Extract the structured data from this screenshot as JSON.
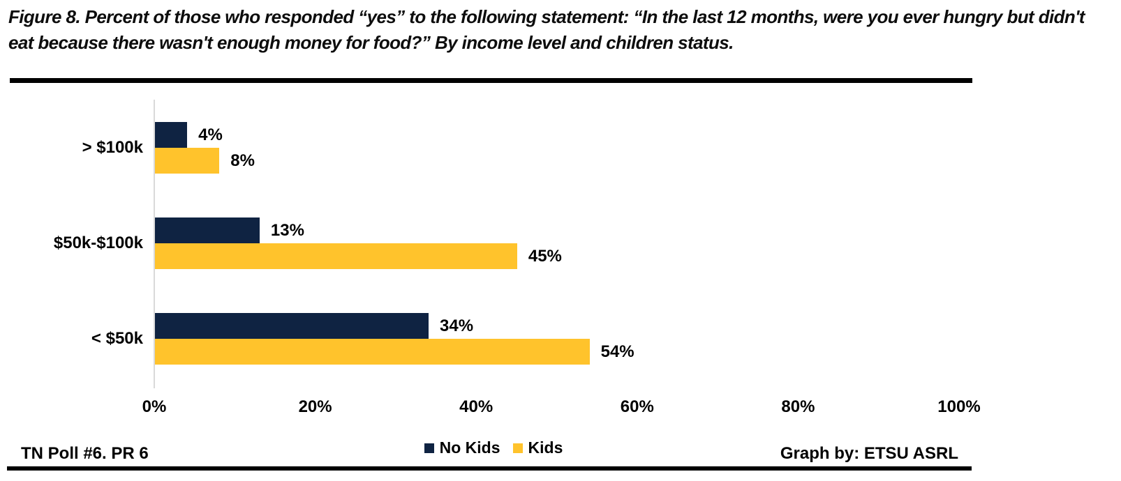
{
  "figure": {
    "title": "Figure 8. Percent of those who responded “yes” to the following statement: “In the last 12 months, were you ever hungry but didn't eat because there wasn't enough money for food?” By income level and children status.",
    "footer_left": "TN Poll #6. PR 6",
    "footer_right": "Graph by: ETSU ASRL"
  },
  "colors": {
    "no_kids_navy": "#0F2342",
    "kids_gold": "#FFC32C",
    "axis_line_gray": "#D9D9D9",
    "rule_black": "#000000"
  },
  "chart_data": {
    "type": "bar",
    "orientation": "horizontal",
    "categories": [
      "> $100k",
      "$50k-$100k",
      "< $50k"
    ],
    "series": [
      {
        "name": "No Kids",
        "color": "#0F2342",
        "values": [
          4,
          13,
          34
        ],
        "labels": [
          "4%",
          "13%",
          "34%"
        ]
      },
      {
        "name": "Kids",
        "color": "#FFC32C",
        "values": [
          8,
          45,
          54
        ],
        "labels": [
          "8%",
          "45%",
          "54%"
        ]
      }
    ],
    "x_axis": {
      "tick_labels": [
        "0%",
        "20%",
        "40%",
        "60%",
        "80%",
        "100%"
      ],
      "tick_values": [
        0,
        20,
        40,
        60,
        80,
        100
      ],
      "range": [
        0,
        100
      ]
    },
    "grid": "off",
    "legend": {
      "position": "bottom",
      "entries": [
        "No Kids",
        "Kids"
      ]
    }
  }
}
